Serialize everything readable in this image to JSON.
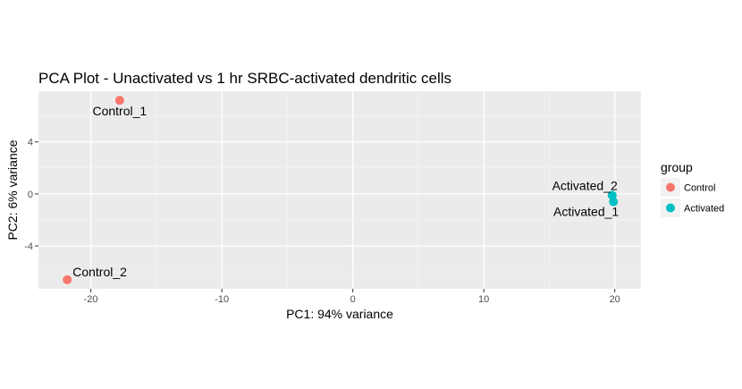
{
  "chart_data": {
    "type": "scatter",
    "title": "PCA Plot - Unactivated vs 1 hr SRBC-activated dendritic cells",
    "xlabel": "PC1: 94% variance",
    "ylabel": "PC2: 6% variance",
    "xlim": [
      -24,
      22
    ],
    "ylim": [
      -7.3,
      7.9
    ],
    "xticks": [
      -20,
      -10,
      0,
      10,
      20
    ],
    "yticks": [
      -4,
      0,
      4
    ],
    "grid": true,
    "legend": {
      "title": "group",
      "placement": "right"
    },
    "series": [
      {
        "name": "Control",
        "color": "#F8766D",
        "points": [
          {
            "label": "Control_1",
            "x": -17.8,
            "y": 7.2
          },
          {
            "label": "Control_2",
            "x": -21.8,
            "y": -6.6
          }
        ]
      },
      {
        "name": "Activated",
        "color": "#00BFC4",
        "points": [
          {
            "label": "Activated_2",
            "x": 19.8,
            "y": -0.1
          },
          {
            "label": "Activated_1",
            "x": 19.9,
            "y": -0.6
          }
        ]
      }
    ]
  }
}
